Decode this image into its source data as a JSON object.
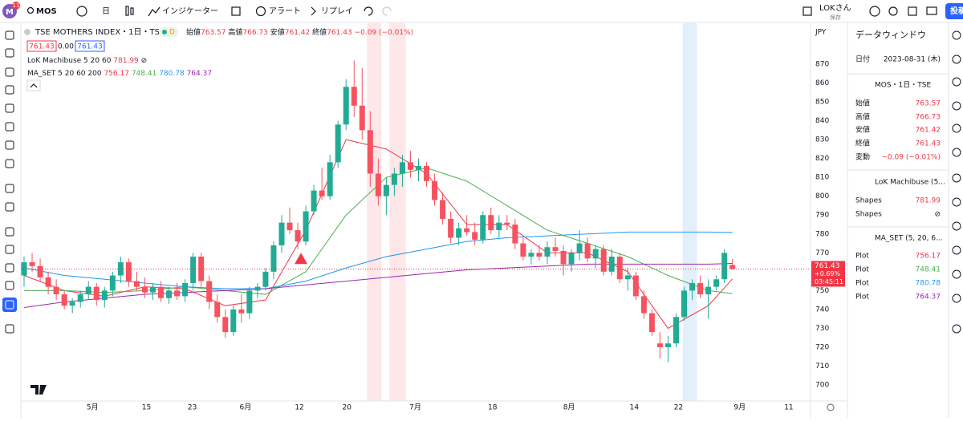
{
  "toolbar": {
    "badge": "11",
    "symbol": "MOS",
    "interval": "日",
    "indicators": "インジケーター",
    "alert": "アラート",
    "replay": "リプレイ",
    "user": "LOKさん",
    "user_sub": "保存",
    "publish": "投稿"
  },
  "legend": {
    "title": "TSE MOTHERS INDEX・1日・TSE",
    "flag": "D",
    "open": "始値",
    "high": "高値",
    "low": "安値",
    "close": "終値",
    "change": "−0.09 (−0.01%)",
    "spread": "0.00",
    "lok": "LoK Machibuse 5 20 60",
    "lok_value": "781.99",
    "lok_icon": "⊘",
    "ma": "MA_SET 5 20 60 200",
    "currency": "JPY",
    "tag_change": "+0.69%",
    "tag_time": "03:45:11"
  },
  "chart_data": {
    "type": "candlestick",
    "xlim": [
      0,
      97.7
    ],
    "ylim": [
      691.5,
      890.4
    ],
    "yticks": [
      700,
      710,
      720,
      730,
      740,
      750,
      760,
      770,
      780,
      790,
      800,
      810,
      820,
      830,
      840,
      850,
      860,
      870
    ],
    "xticks": [
      {
        "value": 8.5,
        "label": "5月"
      },
      {
        "value": 15.2,
        "label": "15"
      },
      {
        "value": 20.9,
        "label": "23"
      },
      {
        "value": 27.5,
        "label": "6月"
      },
      {
        "value": 34.2,
        "label": "12"
      },
      {
        "value": 40.1,
        "label": "20"
      },
      {
        "value": 48.6,
        "label": "7月"
      },
      {
        "value": 58.2,
        "label": "18"
      },
      {
        "value": 67.7,
        "label": "8月"
      },
      {
        "value": 75.8,
        "label": "14"
      },
      {
        "value": 81.3,
        "label": "22"
      },
      {
        "value": 88.9,
        "label": "9月"
      },
      {
        "value": 95,
        "label": "11"
      }
    ],
    "grid": false,
    "up_color": "#22ab94",
    "down_color": "#f7525f",
    "open": [
      758,
      765,
      763,
      757,
      752,
      748,
      742,
      744,
      748,
      752,
      745,
      750,
      758,
      765,
      755,
      752,
      749,
      752,
      746,
      750,
      747,
      754,
      768,
      755,
      744,
      736,
      728,
      740,
      738,
      750,
      752,
      760,
      774,
      786,
      782,
      776,
      792,
      803,
      800,
      818,
      838,
      858,
      848,
      835,
      812,
      800,
      806,
      812,
      818,
      814,
      816,
      808,
      798,
      788,
      778,
      783,
      781,
      777,
      790,
      782,
      786,
      785,
      775,
      768,
      770,
      768,
      773,
      771,
      764,
      770,
      775,
      767,
      772,
      760,
      768,
      756,
      758,
      747,
      738,
      722,
      720,
      722,
      736,
      750,
      754,
      748,
      752,
      756,
      763.57
    ],
    "high": [
      768,
      770,
      767,
      760,
      756,
      750,
      746,
      750,
      755,
      754,
      752,
      760,
      768,
      767,
      760,
      757,
      754,
      755,
      752,
      754,
      756,
      770,
      770,
      758,
      748,
      740,
      742,
      748,
      752,
      754,
      762,
      776,
      790,
      794,
      786,
      795,
      806,
      815,
      822,
      840,
      862,
      872,
      868,
      845,
      820,
      810,
      815,
      822,
      824,
      820,
      818,
      812,
      802,
      792,
      786,
      790,
      786,
      792,
      794,
      790,
      790,
      788,
      778,
      772,
      774,
      776,
      778,
      774,
      772,
      782,
      778,
      774,
      774,
      772,
      770,
      762,
      760,
      750,
      740,
      728,
      726,
      738,
      752,
      756,
      758,
      756,
      758,
      772,
      766.73
    ],
    "low": [
      752,
      760,
      755,
      748,
      745,
      740,
      738,
      741,
      745,
      742,
      741,
      747,
      754,
      752,
      750,
      746,
      745,
      744,
      743,
      745,
      744,
      750,
      752,
      740,
      733,
      725,
      726,
      733,
      735,
      746,
      750,
      756,
      770,
      780,
      772,
      774,
      790,
      798,
      798,
      815,
      835,
      842,
      830,
      805,
      795,
      790,
      800,
      805,
      810,
      808,
      805,
      795,
      785,
      775,
      774,
      779,
      774,
      775,
      780,
      778,
      782,
      772,
      766,
      764,
      766,
      764,
      768,
      758,
      760,
      766,
      765,
      762,
      758,
      758,
      754,
      750,
      745,
      735,
      726,
      714,
      712,
      720,
      734,
      745,
      746,
      735,
      750,
      754,
      761.42
    ],
    "close": [
      765,
      763,
      757,
      752,
      748,
      742,
      744,
      748,
      752,
      745,
      750,
      758,
      765,
      755,
      752,
      749,
      752,
      746,
      750,
      747,
      754,
      768,
      755,
      744,
      736,
      728,
      740,
      738,
      750,
      752,
      760,
      774,
      786,
      782,
      776,
      792,
      803,
      800,
      818,
      838,
      858,
      848,
      835,
      812,
      800,
      806,
      812,
      818,
      814,
      816,
      808,
      798,
      788,
      778,
      783,
      781,
      777,
      790,
      782,
      786,
      785,
      775,
      768,
      770,
      768,
      773,
      771,
      764,
      770,
      775,
      767,
      772,
      760,
      768,
      756,
      758,
      747,
      738,
      728,
      720,
      722,
      736,
      750,
      754,
      748,
      752,
      756,
      770,
      761.43
    ],
    "ma_x": [
      0,
      5,
      10,
      15,
      20,
      25,
      30,
      35,
      40,
      45,
      50,
      55,
      60,
      65,
      70,
      75,
      80,
      85,
      88
    ],
    "ma_series": [
      {
        "name": "MA5",
        "color": "#f23645",
        "values": [
          758,
          750,
          747,
          752,
          751,
          742,
          745,
          782,
          830,
          825,
          812,
          785,
          785,
          770,
          770,
          760,
          730,
          742,
          756.17
        ]
      },
      {
        "name": "MA20",
        "color": "#4caf50",
        "values": [
          750,
          750,
          749,
          750,
          752,
          750,
          748,
          760,
          790,
          810,
          815,
          808,
          795,
          782,
          775,
          768,
          758,
          750,
          748.41
        ]
      },
      {
        "name": "MA60",
        "color": "#2196f3",
        "values": [
          762,
          758,
          756,
          754,
          752,
          751,
          751,
          755,
          762,
          768,
          772,
          776,
          778,
          779,
          780,
          781,
          781,
          781,
          780.78
        ]
      },
      {
        "name": "MA200",
        "color": "#9c27b0",
        "values": [
          741,
          744,
          746,
          748,
          749,
          750,
          751,
          753,
          755,
          757,
          759,
          761,
          762,
          763,
          764,
          764,
          764,
          764,
          764.37
        ]
      }
    ],
    "highlights": [
      {
        "from": 42.6,
        "to": 44.4,
        "color": "#fde7e9"
      },
      {
        "from": 45.4,
        "to": 47.4,
        "color": "#fde7e9"
      },
      {
        "from": 81.8,
        "to": 83.6,
        "color": "#e3f0fc"
      }
    ],
    "markers": [
      {
        "index": 34.4,
        "value": 770,
        "color": "#f23645"
      }
    ]
  },
  "data_window": {
    "title": "データウィンドウ",
    "date_label": "日付",
    "date": "2023-08-31 (木)",
    "section": "MOS・1日・TSE",
    "rows": [
      "始値",
      "高値",
      "安値",
      "終値",
      "変動"
    ],
    "lok": "LoK Machibuse (5...",
    "shapes": "Shapes",
    "ma": "MA_SET (5, 20, 6...",
    "plot": "Plot"
  }
}
